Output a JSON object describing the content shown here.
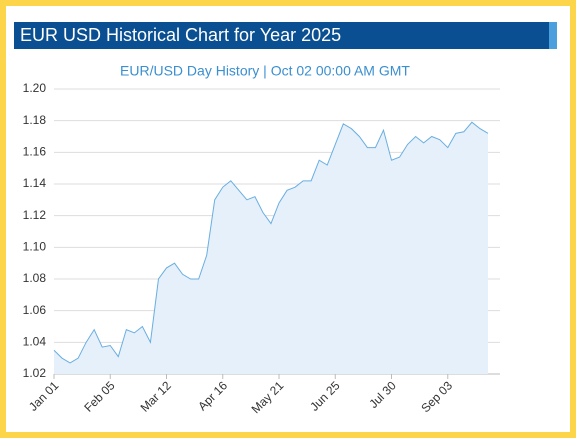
{
  "header": {
    "title": "EUR USD Historical Chart for Year 2025"
  },
  "chart_data": {
    "type": "area",
    "subtitle": "EUR/USD  Day History | Oct 02 00:00 AM GMT",
    "x": [
      "Jan 01",
      "Jan 06",
      "Jan 11",
      "Jan 16",
      "Jan 21",
      "Jan 26",
      "Jan 31",
      "Feb 05",
      "Feb 10",
      "Feb 15",
      "Feb 20",
      "Feb 25",
      "Mar 02",
      "Mar 07",
      "Mar 12",
      "Mar 17",
      "Mar 22",
      "Mar 27",
      "Apr 01",
      "Apr 06",
      "Apr 11",
      "Apr 16",
      "Apr 21",
      "Apr 26",
      "May 01",
      "May 06",
      "May 11",
      "May 16",
      "May 21",
      "May 26",
      "May 31",
      "Jun 05",
      "Jun 10",
      "Jun 15",
      "Jun 20",
      "Jun 25",
      "Jun 30",
      "Jul 05",
      "Jul 10",
      "Jul 15",
      "Jul 20",
      "Jul 25",
      "Jul 30",
      "Aug 04",
      "Aug 09",
      "Aug 14",
      "Aug 19",
      "Aug 24",
      "Aug 29",
      "Sep 03",
      "Sep 08",
      "Sep 13",
      "Sep 18",
      "Sep 23",
      "Sep 28"
    ],
    "values": [
      1.035,
      1.03,
      1.027,
      1.03,
      1.04,
      1.048,
      1.037,
      1.038,
      1.031,
      1.048,
      1.046,
      1.05,
      1.04,
      1.08,
      1.087,
      1.09,
      1.083,
      1.08,
      1.08,
      1.095,
      1.13,
      1.138,
      1.142,
      1.136,
      1.13,
      1.132,
      1.122,
      1.115,
      1.128,
      1.136,
      1.138,
      1.142,
      1.142,
      1.155,
      1.152,
      1.165,
      1.178,
      1.175,
      1.17,
      1.163,
      1.163,
      1.174,
      1.155,
      1.157,
      1.165,
      1.17,
      1.166,
      1.17,
      1.168,
      1.163,
      1.172,
      1.173,
      1.179,
      1.175,
      1.172
    ],
    "color": "#6aaee0",
    "fill": "#e5f0fa",
    "xticks": [
      "Jan 01",
      "Feb 05",
      "Mar 12",
      "Apr 16",
      "May 21",
      "Jun 25",
      "Jul 30",
      "Sep 03"
    ],
    "ylim": [
      1.02,
      1.2
    ],
    "yticks": [
      {
        "value": 1.02,
        "label": "1.02"
      },
      {
        "value": 1.04,
        "label": "1.04"
      },
      {
        "value": 1.06,
        "label": "1.06"
      },
      {
        "value": 1.08,
        "label": "1.08"
      },
      {
        "value": 1.1,
        "label": "1.10"
      },
      {
        "value": 1.12,
        "label": "1.12"
      },
      {
        "value": 1.14,
        "label": "1.14"
      },
      {
        "value": 1.16,
        "label": "1.16"
      },
      {
        "value": 1.18,
        "label": "1.18"
      },
      {
        "value": 1.2,
        "label": "1.20"
      }
    ],
    "grid": true
  }
}
